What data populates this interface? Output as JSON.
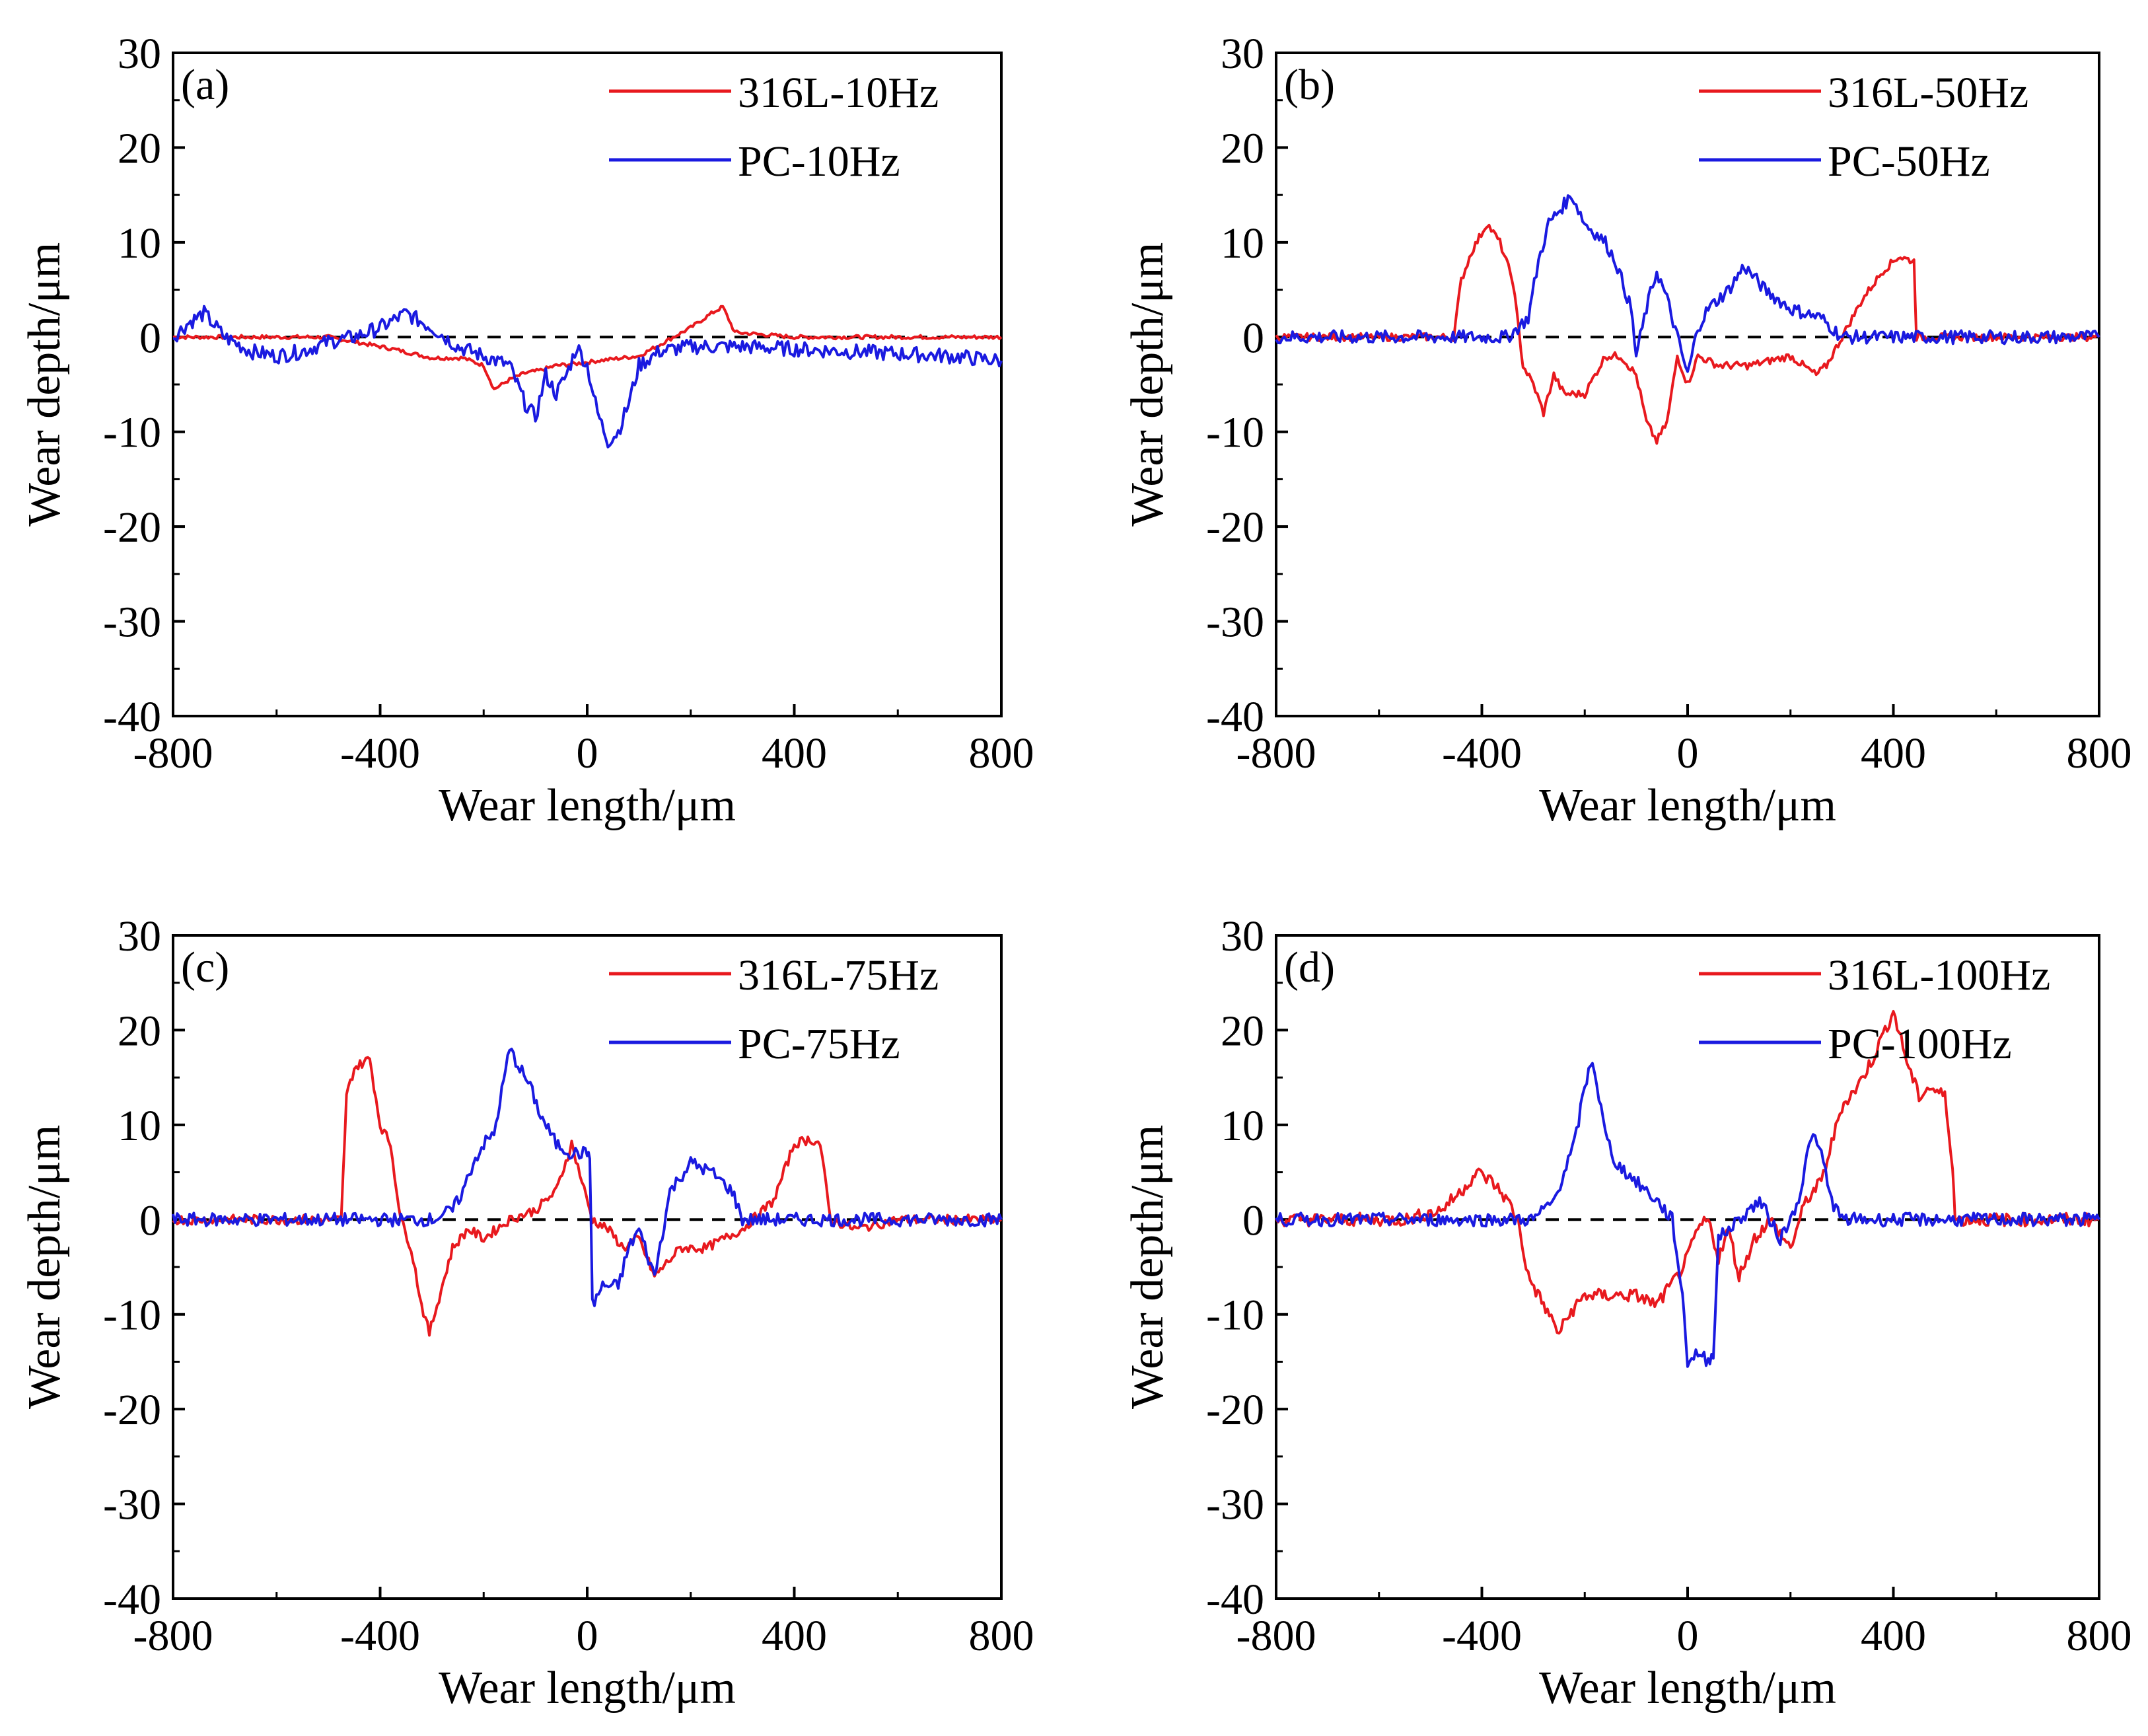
{
  "chart_data": [
    {
      "type": "line",
      "panel_label": "(a)",
      "xlabel": "Wear length/μm",
      "ylabel": "Wear depth/μm",
      "xlim": [
        -800,
        800
      ],
      "ylim": [
        -40,
        30
      ],
      "xticks": [
        -800,
        -400,
        0,
        400,
        800
      ],
      "yticks": [
        -40,
        -30,
        -20,
        -10,
        0,
        10,
        20,
        30
      ],
      "reference_line": {
        "y": 0,
        "style": "dashed",
        "color": "#000000"
      },
      "legend_position": "top-right",
      "series": [
        {
          "name": "316L-10Hz",
          "color": "#e8191e",
          "x": [
            -800,
            -500,
            -380,
            -300,
            -240,
            -200,
            -180,
            -150,
            -120,
            -90,
            -60,
            -20,
            20,
            100,
            150,
            200,
            240,
            262,
            285,
            400,
            600,
            800
          ],
          "y": [
            0,
            0,
            -1.2,
            -2.2,
            -2.2,
            -3,
            -5.5,
            -4.5,
            -3.8,
            -3.5,
            -3,
            -2.8,
            -2.5,
            -2,
            -0.5,
            1,
            2.5,
            3.2,
            0.5,
            0,
            0,
            0
          ],
          "noise": 0.2
        },
        {
          "name": "PC-10Hz",
          "color": "#1a1ae0",
          "x": [
            -800,
            -770,
            -740,
            -700,
            -650,
            -600,
            -550,
            -500,
            -450,
            -400,
            -350,
            -300,
            -250,
            -200,
            -150,
            -120,
            -100,
            -80,
            -60,
            -40,
            -20,
            0,
            20,
            40,
            60,
            80,
            100,
            140,
            200,
            300,
            500,
            700,
            800
          ],
          "y": [
            0,
            1.5,
            2.5,
            0,
            -1.5,
            -2,
            -1.5,
            -0.5,
            0,
            1,
            2.5,
            1,
            -1,
            -2,
            -3,
            -7,
            -8.5,
            -4,
            -6,
            -4,
            -1,
            -3,
            -8,
            -11,
            -10,
            -7,
            -3,
            -1.5,
            -1,
            -1,
            -1.5,
            -2,
            -2.5
          ],
          "noise": 0.8
        }
      ],
      "legend": [
        "316L-10Hz",
        "PC-10Hz"
      ]
    },
    {
      "type": "line",
      "panel_label": "(b)",
      "xlabel": "Wear length/μm",
      "ylabel": "Wear depth/μm",
      "xlim": [
        -800,
        800
      ],
      "ylim": [
        -40,
        30
      ],
      "xticks": [
        -800,
        -400,
        0,
        400,
        800
      ],
      "yticks": [
        -40,
        -30,
        -20,
        -10,
        0,
        10,
        20,
        30
      ],
      "reference_line": {
        "y": 0,
        "style": "dashed",
        "color": "#000000"
      },
      "legend_position": "top-right",
      "series": [
        {
          "name": "316L-50Hz",
          "color": "#e8191e",
          "x": [
            -800,
            -455,
            -440,
            -420,
            -390,
            -365,
            -340,
            -320,
            -300,
            -280,
            -260,
            -240,
            -200,
            -160,
            -130,
            -100,
            -80,
            -60,
            -40,
            -20,
            0,
            20,
            60,
            120,
            200,
            250,
            270,
            300,
            340,
            380,
            410,
            440,
            445,
            800
          ],
          "y": [
            0,
            0,
            6,
            9,
            12,
            10,
            6,
            -3,
            -5,
            -8,
            -4,
            -6,
            -6,
            -2,
            -2,
            -4,
            -9,
            -11,
            -9,
            -2,
            -5,
            -2,
            -3,
            -3,
            -2,
            -4,
            -3,
            0,
            4,
            7,
            8.5,
            8,
            0,
            0
          ],
          "noise": 0.4
        },
        {
          "name": "PC-50Hz",
          "color": "#1a1ae0",
          "x": [
            -800,
            -400,
            -350,
            -310,
            -290,
            -270,
            -240,
            -225,
            -200,
            -160,
            -140,
            -110,
            -100,
            -80,
            -60,
            -40,
            -20,
            0,
            20,
            40,
            80,
            110,
            150,
            200,
            260,
            300,
            400,
            800
          ],
          "y": [
            0,
            0,
            0,
            2,
            8,
            12,
            14,
            15,
            12,
            10,
            8,
            3,
            -2,
            3,
            7,
            4,
            0,
            -4,
            1,
            3,
            5,
            7.5,
            5,
            3,
            2,
            0,
            0,
            0
          ],
          "noise": 0.7
        }
      ],
      "legend": [
        "316L-50Hz",
        "PC-50Hz"
      ]
    },
    {
      "type": "line",
      "panel_label": "(c)",
      "xlabel": "Wear length/μm",
      "ylabel": "Wear depth/μm",
      "xlim": [
        -800,
        800
      ],
      "ylim": [
        -40,
        30
      ],
      "xticks": [
        -800,
        -400,
        0,
        400,
        800
      ],
      "yticks": [
        -40,
        -30,
        -20,
        -10,
        0,
        10,
        20,
        30
      ],
      "reference_line": {
        "y": 0,
        "style": "dashed",
        "color": "#000000"
      },
      "legend_position": "top-right",
      "series": [
        {
          "name": "316L-75Hz",
          "color": "#e8191e",
          "x": [
            -800,
            -475,
            -465,
            -450,
            -420,
            -400,
            -380,
            -360,
            -340,
            -320,
            -305,
            -290,
            -260,
            -230,
            -200,
            -150,
            -100,
            -60,
            -30,
            -10,
            10,
            40,
            70,
            100,
            130,
            180,
            230,
            300,
            360,
            400,
            430,
            450,
            470,
            520,
            600,
            800
          ],
          "y": [
            0,
            0,
            13,
            16,
            17,
            10,
            8,
            0,
            -3,
            -9,
            -12,
            -9,
            -3,
            -1,
            -2,
            0,
            1,
            3,
            8,
            4,
            0,
            -1,
            -3,
            -2,
            -6,
            -3,
            -3,
            -1,
            2,
            8,
            8.5,
            8,
            0,
            -1,
            0,
            0
          ],
          "noise": 0.5
        },
        {
          "name": "PC-75Hz",
          "color": "#1a1ae0",
          "x": [
            -800,
            -400,
            -300,
            -260,
            -240,
            -220,
            -200,
            -180,
            -150,
            -130,
            -110,
            -90,
            -60,
            -30,
            0,
            5,
            10,
            30,
            60,
            80,
            100,
            130,
            160,
            200,
            240,
            280,
            300,
            340,
            400,
            800
          ],
          "y": [
            0,
            0,
            0,
            1,
            3,
            6,
            8,
            9,
            18,
            16,
            14,
            11,
            8,
            7,
            7,
            7,
            -9,
            -7,
            -7,
            -3,
            -1,
            -6,
            3,
            6,
            5,
            3,
            0,
            0,
            0,
            0
          ],
          "noise": 0.7
        }
      ],
      "legend": [
        "316L-75Hz",
        "PC-75Hz"
      ]
    },
    {
      "type": "line",
      "panel_label": "(d)",
      "xlabel": "Wear length/μm",
      "ylabel": "Wear depth/μm",
      "xlim": [
        -800,
        800
      ],
      "ylim": [
        -40,
        30
      ],
      "xticks": [
        -800,
        -400,
        0,
        400,
        800
      ],
      "yticks": [
        -40,
        -30,
        -20,
        -10,
        0,
        10,
        20,
        30
      ],
      "reference_line": {
        "y": 0,
        "style": "dashed",
        "color": "#000000"
      },
      "legend_position": "top-right",
      "series": [
        {
          "name": "316L-100Hz",
          "color": "#e8191e",
          "x": [
            -800,
            -550,
            -480,
            -440,
            -410,
            -380,
            -350,
            -330,
            -310,
            -280,
            -250,
            -230,
            -200,
            -150,
            -100,
            -60,
            -20,
            0,
            20,
            40,
            60,
            80,
            100,
            130,
            160,
            200,
            230,
            260,
            300,
            330,
            360,
            400,
            430,
            450,
            470,
            500,
            515,
            520,
            800
          ],
          "y": [
            0,
            0,
            1,
            3,
            5,
            4,
            2,
            0,
            -6,
            -9,
            -12,
            -10,
            -8,
            -8,
            -8,
            -9,
            -6,
            -4,
            -1,
            0,
            -4,
            -1,
            -6,
            -2,
            0,
            -3,
            2,
            4,
            12,
            14,
            17,
            22,
            16,
            13,
            14,
            13,
            6,
            0,
            0
          ],
          "noise": 0.7
        },
        {
          "name": "PC-100Hz",
          "color": "#1a1ae0",
          "x": [
            -800,
            -400,
            -300,
            -260,
            -240,
            -220,
            -200,
            -185,
            -160,
            -140,
            -100,
            -60,
            -30,
            -10,
            0,
            20,
            40,
            50,
            60,
            100,
            140,
            180,
            200,
            220,
            240,
            260,
            280,
            300,
            400,
            800
          ],
          "y": [
            0,
            0,
            0,
            2,
            5,
            8,
            14,
            17,
            9,
            6,
            4,
            2,
            0,
            -8,
            -15,
            -14,
            -15,
            -14,
            -2,
            0,
            2,
            -2,
            0,
            3,
            9,
            7,
            2,
            0,
            0,
            0
          ],
          "noise": 0.7
        }
      ],
      "legend": [
        "316L-100Hz",
        "PC-100Hz"
      ]
    }
  ]
}
